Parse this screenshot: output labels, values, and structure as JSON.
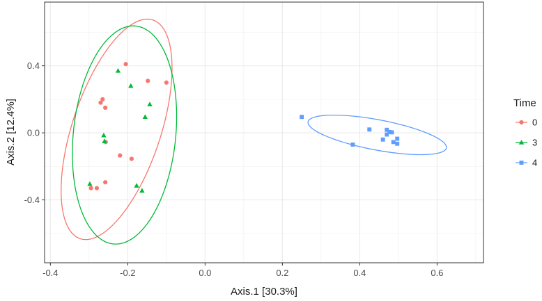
{
  "chart_data": {
    "type": "scatter",
    "title": "",
    "xlabel": "Axis.1  [30.3%]",
    "ylabel": "Axis.2  [12.4%]",
    "xlim": [
      -0.415,
      0.72
    ],
    "ylim": [
      -0.775,
      0.78
    ],
    "x_ticks": [
      -0.4,
      -0.2,
      0.0,
      0.2,
      0.4,
      0.6
    ],
    "x_tick_labels": [
      "-0.4",
      "-0.2",
      "0.0",
      "0.2",
      "0.4",
      "0.6"
    ],
    "y_ticks": [
      -0.4,
      0.0,
      0.4
    ],
    "y_tick_labels": [
      "-0.4",
      "0.0",
      "0.4"
    ],
    "grid": true,
    "ellipses": true,
    "legend": {
      "title": "Time",
      "position": "right"
    },
    "series": [
      {
        "name": "0",
        "color": "#F8766D",
        "marker": "circle",
        "points": [
          [
            -0.205,
            0.41
          ],
          [
            -0.148,
            0.31
          ],
          [
            -0.1,
            0.3
          ],
          [
            -0.265,
            0.2
          ],
          [
            -0.27,
            0.18
          ],
          [
            -0.258,
            0.15
          ],
          [
            -0.257,
            -0.055
          ],
          [
            -0.22,
            -0.135
          ],
          [
            -0.19,
            -0.155
          ],
          [
            -0.258,
            -0.295
          ],
          [
            -0.28,
            -0.33
          ],
          [
            -0.295,
            -0.33
          ]
        ]
      },
      {
        "name": "3",
        "color": "#00BA38",
        "marker": "triangle",
        "points": [
          [
            -0.225,
            0.37
          ],
          [
            -0.192,
            0.28
          ],
          [
            -0.143,
            0.17
          ],
          [
            -0.155,
            0.095
          ],
          [
            -0.262,
            -0.015
          ],
          [
            -0.26,
            -0.05
          ],
          [
            -0.298,
            -0.305
          ],
          [
            -0.177,
            -0.315
          ],
          [
            -0.163,
            -0.345
          ]
        ]
      },
      {
        "name": "4",
        "color": "#619CFF",
        "marker": "square",
        "points": [
          [
            0.25,
            0.095
          ],
          [
            0.425,
            0.02
          ],
          [
            0.47,
            0.018
          ],
          [
            0.477,
            0.005
          ],
          [
            0.483,
            0.003
          ],
          [
            0.47,
            -0.01
          ],
          [
            0.46,
            -0.04
          ],
          [
            0.487,
            -0.055
          ],
          [
            0.497,
            -0.035
          ],
          [
            0.497,
            -0.065
          ],
          [
            0.382,
            -0.07
          ]
        ]
      }
    ]
  }
}
